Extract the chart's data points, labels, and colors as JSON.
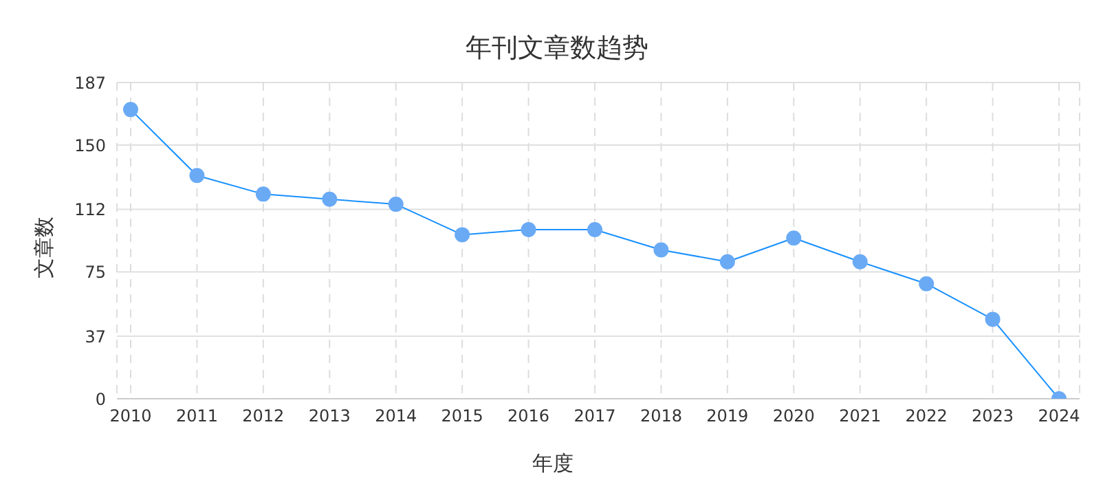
{
  "chart_data": {
    "type": "line",
    "title": "年刊文章数趋势",
    "xlabel": "年度",
    "ylabel": "文章数",
    "categories": [
      "2010",
      "2011",
      "2012",
      "2013",
      "2014",
      "2015",
      "2016",
      "2017",
      "2018",
      "2019",
      "2020",
      "2021",
      "2022",
      "2023",
      "2024"
    ],
    "series": [
      {
        "color": "#1890ff",
        "values": [
          171,
          132,
          121,
          118,
          115,
          97,
          100,
          100,
          88,
          81,
          95,
          81,
          68,
          47,
          0
        ]
      }
    ],
    "ylim": [
      0,
      187
    ],
    "yticks": [
      0,
      37,
      75,
      112,
      150,
      187
    ],
    "grid": true,
    "marker": "circle",
    "line_style": "solid"
  }
}
